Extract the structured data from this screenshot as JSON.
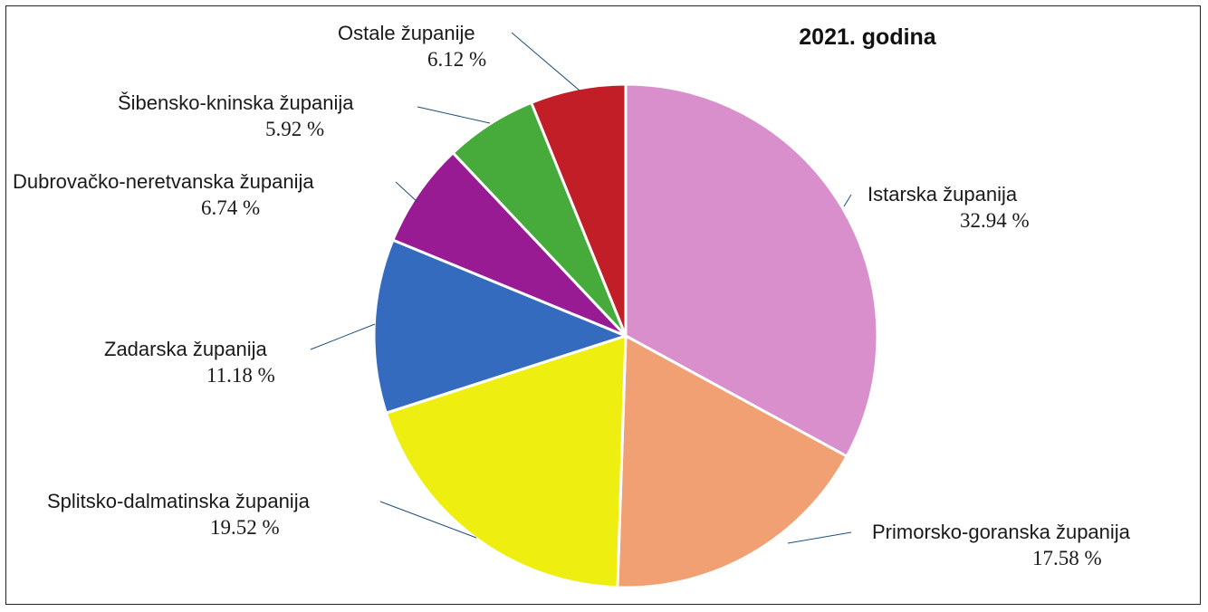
{
  "chart_data": {
    "type": "pie",
    "title": "2021. godina",
    "slices": [
      {
        "label": "Istarska županija",
        "value": 32.94,
        "value_label": "32.94 %",
        "color": "#da8fcd"
      },
      {
        "label": "Primorsko-goranska županija",
        "value": 17.58,
        "value_label": "17.58 %",
        "color": "#f0a073"
      },
      {
        "label": "Splitsko-dalmatinska županija",
        "value": 19.52,
        "value_label": "19.52 %",
        "color": "#eeee11"
      },
      {
        "label": "Zadarska županija",
        "value": 11.18,
        "value_label": "11.18 %",
        "color": "#356bbe"
      },
      {
        "label": "Dubrovačko-neretvanska županija",
        "value": 6.74,
        "value_label": "6.74 %",
        "color": "#991b93"
      },
      {
        "label": "Šibensko-kninska županija",
        "value": 5.92,
        "value_label": "5.92 %",
        "color": "#47ab3c"
      },
      {
        "label": "Ostale županije",
        "value": 6.12,
        "value_label": "6.12 %",
        "color": "#c21e27"
      }
    ],
    "start_angle_deg": 0,
    "direction": "clockwise",
    "leader_line_color": "#1f4e79"
  }
}
